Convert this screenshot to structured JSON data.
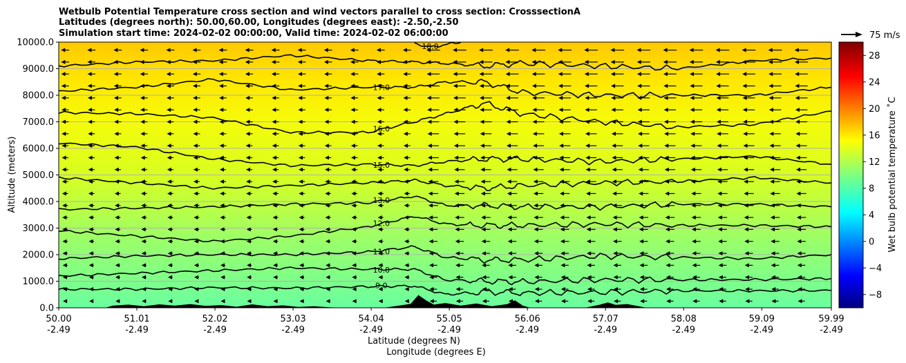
{
  "chart_data": {
    "type": "heatmap",
    "title_lines": [
      "Wetbulb Potential Temperature cross section and wind vectors parallel to cross section: CrosssectionA",
      "Latitudes (degrees north): 50.00,60.00, Longitudes (degrees east): -2.50,-2.50",
      "Simulation start time: 2024-02-02 00:00:00, Valid time: 2024-02-02 06:00:00"
    ],
    "xlabel_line1": "Latitude (degrees N)",
    "xlabel_line2": "Longitude (degrees E)",
    "ylabel": "Altitude (meters)",
    "xlim": [
      50.0,
      59.99
    ],
    "ylim": [
      0,
      10000
    ],
    "x_ticks": [
      {
        "lat": "50.00",
        "lon": "-2.49"
      },
      {
        "lat": "51.01",
        "lon": "-2.49"
      },
      {
        "lat": "52.02",
        "lon": "-2.49"
      },
      {
        "lat": "53.03",
        "lon": "-2.49"
      },
      {
        "lat": "54.04",
        "lon": "-2.49"
      },
      {
        "lat": "55.05",
        "lon": "-2.49"
      },
      {
        "lat": "56.06",
        "lon": "-2.49"
      },
      {
        "lat": "57.07",
        "lon": "-2.49"
      },
      {
        "lat": "58.08",
        "lon": "-2.49"
      },
      {
        "lat": "59.09",
        "lon": "-2.49"
      },
      {
        "lat": "59.99",
        "lon": "-2.49"
      }
    ],
    "y_ticks": [
      "0.0",
      "1000.0",
      "2000.0",
      "3000.0",
      "4000.0",
      "5000.0",
      "6000.0",
      "7000.0",
      "8000.0",
      "9000.0",
      "10000.0"
    ],
    "grid": "horizontal",
    "colorbar": {
      "label": "Wet bulb potential temperature ˚C",
      "range": [
        -10,
        30
      ],
      "ticks": [
        "−8",
        "−4",
        "0",
        "4",
        "8",
        "12",
        "16",
        "20",
        "24",
        "28"
      ],
      "colormap": "jet"
    },
    "quiver_key": "75 m/s",
    "contours": [
      {
        "level": 9.0,
        "label": "9.0",
        "points": [
          [
            50.0,
            700
          ],
          [
            51.0,
            700
          ],
          [
            52.0,
            760
          ],
          [
            53.0,
            740
          ],
          [
            54.0,
            800
          ],
          [
            54.6,
            820
          ],
          [
            55.0,
            500
          ],
          [
            55.5,
            600
          ],
          [
            56.0,
            560
          ],
          [
            57.0,
            580
          ],
          [
            58.0,
            640
          ],
          [
            59.0,
            640
          ],
          [
            59.99,
            650
          ]
        ]
      },
      {
        "level": 10.0,
        "label": "10.0",
        "points": [
          [
            50.0,
            1200
          ],
          [
            51.0,
            1300
          ],
          [
            52.0,
            1400
          ],
          [
            53.0,
            1500
          ],
          [
            54.0,
            1450
          ],
          [
            54.6,
            1450
          ],
          [
            55.0,
            1050
          ],
          [
            55.5,
            1000
          ],
          [
            56.0,
            980
          ],
          [
            57.0,
            1050
          ],
          [
            58.0,
            1050
          ],
          [
            59.0,
            1060
          ],
          [
            59.99,
            1100
          ]
        ]
      },
      {
        "level": 11.0,
        "label": "11.0",
        "points": [
          [
            50.0,
            1850
          ],
          [
            51.0,
            1950
          ],
          [
            52.0,
            2000
          ],
          [
            53.0,
            2000
          ],
          [
            54.0,
            2100
          ],
          [
            54.6,
            2300
          ],
          [
            55.0,
            1900
          ],
          [
            55.5,
            1800
          ],
          [
            56.0,
            1800
          ],
          [
            57.0,
            1950
          ],
          [
            58.0,
            1900
          ],
          [
            59.0,
            1850
          ],
          [
            59.99,
            2000
          ]
        ]
      },
      {
        "level": 12.0,
        "label": "12.0",
        "points": [
          [
            50.0,
            2900
          ],
          [
            51.0,
            2700
          ],
          [
            52.0,
            2500
          ],
          [
            53.0,
            2700
          ],
          [
            54.0,
            3050
          ],
          [
            54.6,
            3450
          ],
          [
            55.0,
            3150
          ],
          [
            55.5,
            3100
          ],
          [
            56.0,
            3100
          ],
          [
            57.0,
            3150
          ],
          [
            58.0,
            3100
          ],
          [
            59.0,
            3100
          ],
          [
            59.99,
            3050
          ]
        ]
      },
      {
        "level": 13.0,
        "label": "13.0",
        "points": [
          [
            50.0,
            3700
          ],
          [
            51.0,
            3750
          ],
          [
            52.0,
            3800
          ],
          [
            53.0,
            3900
          ],
          [
            54.0,
            3950
          ],
          [
            54.6,
            4200
          ],
          [
            55.0,
            3850
          ],
          [
            55.5,
            3850
          ],
          [
            56.0,
            3800
          ],
          [
            57.0,
            3800
          ],
          [
            58.0,
            3900
          ],
          [
            59.0,
            3900
          ],
          [
            59.99,
            3800
          ]
        ]
      },
      {
        "level": 14.0,
        "label": "",
        "points": [
          [
            50.0,
            4900
          ],
          [
            51.0,
            4700
          ],
          [
            52.0,
            4500
          ],
          [
            53.0,
            4600
          ],
          [
            54.0,
            4700
          ],
          [
            54.6,
            4800
          ],
          [
            55.0,
            4600
          ],
          [
            55.5,
            4500
          ],
          [
            56.0,
            4600
          ],
          [
            57.0,
            4700
          ],
          [
            58.0,
            4750
          ],
          [
            59.0,
            4900
          ],
          [
            59.99,
            4700
          ]
        ]
      },
      {
        "level": 15.0,
        "label": "15.0",
        "points": [
          [
            50.0,
            6200
          ],
          [
            51.0,
            6050
          ],
          [
            52.0,
            5600
          ],
          [
            53.0,
            5350
          ],
          [
            54.0,
            5400
          ],
          [
            54.6,
            5350
          ],
          [
            55.0,
            5500
          ],
          [
            55.5,
            5600
          ],
          [
            56.0,
            5600
          ],
          [
            57.0,
            5500
          ],
          [
            58.0,
            5600
          ],
          [
            59.0,
            5700
          ],
          [
            59.99,
            5400
          ]
        ]
      },
      {
        "level": 16.0,
        "label": "16.0",
        "points": [
          [
            50.0,
            7350
          ],
          [
            51.0,
            7300
          ],
          [
            52.0,
            7150
          ],
          [
            53.0,
            6600
          ],
          [
            54.0,
            6600
          ],
          [
            54.6,
            7000
          ],
          [
            55.0,
            7300
          ],
          [
            55.5,
            7700
          ],
          [
            56.0,
            7300
          ],
          [
            57.0,
            7000
          ],
          [
            58.0,
            6800
          ],
          [
            59.0,
            6900
          ],
          [
            59.99,
            7400
          ]
        ]
      },
      {
        "level": 17.0,
        "label": "17.0",
        "points": [
          [
            50.0,
            8150
          ],
          [
            51.0,
            8300
          ],
          [
            52.0,
            8600
          ],
          [
            53.0,
            8200
          ],
          [
            54.0,
            8300
          ],
          [
            54.6,
            8300
          ],
          [
            55.0,
            8500
          ],
          [
            55.5,
            8500
          ],
          [
            56.0,
            8100
          ],
          [
            57.0,
            8000
          ],
          [
            58.0,
            8000
          ],
          [
            59.0,
            8000
          ],
          [
            59.99,
            8300
          ]
        ]
      },
      {
        "level": 17.5,
        "label": "",
        "points": [
          [
            50.0,
            9100
          ],
          [
            51.0,
            9250
          ],
          [
            52.0,
            9300
          ],
          [
            53.0,
            9500
          ],
          [
            54.0,
            9300
          ],
          [
            54.6,
            9250
          ],
          [
            55.0,
            9200
          ],
          [
            55.5,
            9100
          ],
          [
            56.0,
            9200
          ],
          [
            57.0,
            9100
          ],
          [
            58.0,
            9000
          ],
          [
            59.0,
            9300
          ],
          [
            59.99,
            9400
          ]
        ]
      },
      {
        "level": 18.0,
        "label": "18.0",
        "points": [
          [
            54.6,
            10000
          ],
          [
            54.75,
            9800
          ],
          [
            55.0,
            9900
          ],
          [
            55.2,
            10000
          ]
        ]
      }
    ],
    "terrain_points": [
      [
        50.0,
        0
      ],
      [
        50.6,
        0
      ],
      [
        50.7,
        80
      ],
      [
        50.9,
        120
      ],
      [
        51.1,
        60
      ],
      [
        51.3,
        130
      ],
      [
        51.5,
        80
      ],
      [
        51.7,
        140
      ],
      [
        51.9,
        70
      ],
      [
        52.1,
        100
      ],
      [
        52.3,
        40
      ],
      [
        52.5,
        130
      ],
      [
        52.7,
        60
      ],
      [
        52.9,
        90
      ],
      [
        53.1,
        30
      ],
      [
        53.3,
        60
      ],
      [
        53.5,
        20
      ],
      [
        53.7,
        0
      ],
      [
        54.2,
        0
      ],
      [
        54.4,
        80
      ],
      [
        54.55,
        150
      ],
      [
        54.65,
        480
      ],
      [
        54.75,
        280
      ],
      [
        54.85,
        120
      ],
      [
        55.0,
        180
      ],
      [
        55.2,
        80
      ],
      [
        55.4,
        160
      ],
      [
        55.6,
        60
      ],
      [
        55.8,
        140
      ],
      [
        55.9,
        280
      ],
      [
        56.0,
        80
      ],
      [
        56.1,
        0
      ],
      [
        56.8,
        0
      ],
      [
        56.9,
        60
      ],
      [
        57.0,
        120
      ],
      [
        57.1,
        200
      ],
      [
        57.2,
        110
      ],
      [
        57.35,
        140
      ],
      [
        57.5,
        60
      ],
      [
        57.6,
        0
      ],
      [
        59.99,
        0
      ]
    ]
  }
}
